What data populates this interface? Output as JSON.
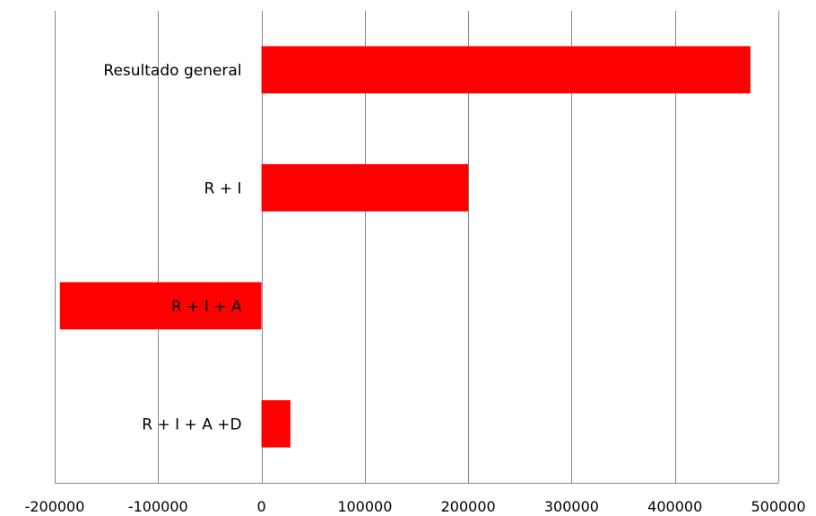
{
  "chart_data": {
    "type": "bar",
    "orientation": "horizontal",
    "categories": [
      "Resultado general",
      "R + I",
      "R + I + A",
      "R + I + A +D"
    ],
    "values": [
      473000,
      200000,
      -195000,
      28000
    ],
    "xlim": [
      -200000,
      500000
    ],
    "xticks": [
      -200000,
      -100000,
      0,
      100000,
      200000,
      300000,
      400000,
      500000
    ],
    "xtick_labels": [
      "-200000",
      "-100000",
      "0",
      "100000",
      "200000",
      "300000",
      "400000",
      "500000"
    ],
    "grid": "vertical",
    "legend": "none",
    "bar_color": "#ff0000",
    "grid_color": "#868686"
  }
}
